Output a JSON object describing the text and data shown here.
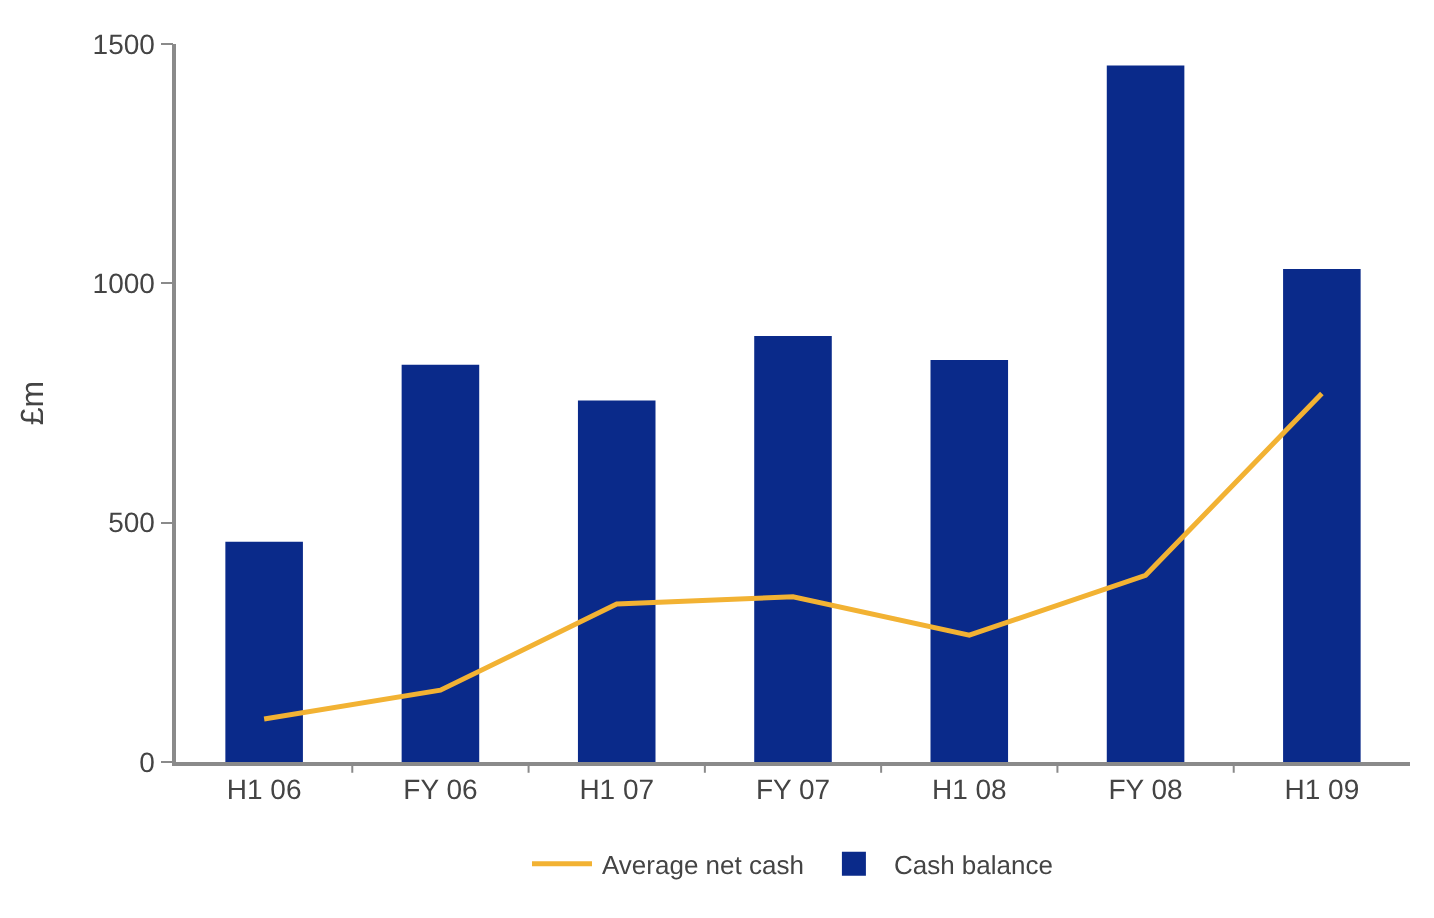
{
  "chart_data": {
    "type": "bar",
    "ylabel": "£m",
    "categories": [
      "H1 06",
      "FY 06",
      "H1 07",
      "FY 07",
      "H1 08",
      "FY 08",
      "H1 09"
    ],
    "series": [
      {
        "name": "Average net cash",
        "type": "line",
        "color": "#f2b233",
        "values": [
          90,
          150,
          330,
          345,
          265,
          390,
          770
        ]
      },
      {
        "name": "Cash balance",
        "color": "#0a2a8a",
        "values": [
          460,
          830,
          755,
          890,
          840,
          1455,
          1030
        ]
      }
    ],
    "ylim": [
      0,
      1500
    ],
    "yticks": [
      0,
      500,
      1000,
      1500
    ],
    "legend": "bottom",
    "marker": "none"
  }
}
